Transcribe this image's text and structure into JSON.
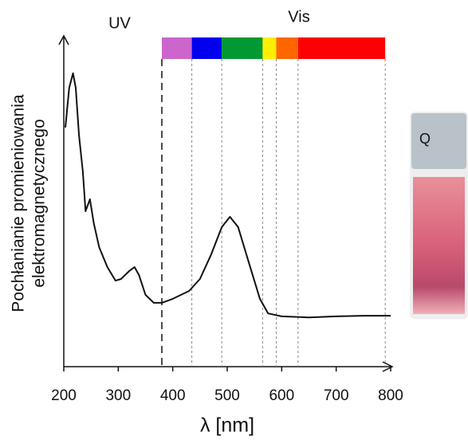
{
  "chart_data": {
    "type": "line",
    "annotations": [
      "UV",
      "Vis"
    ],
    "ylabel": [
      "Pochłanianie promieniowania",
      "elektromagnetycznego"
    ],
    "xlabel": "λ [nm]",
    "cuvette_label": "Q",
    "xlim": [
      200,
      800
    ],
    "xticks": [
      200,
      300,
      400,
      500,
      600,
      700,
      800
    ],
    "ylim": [
      0,
      1
    ],
    "bands": [
      {
        "from": 380,
        "to": 435,
        "color": "#cc66cc"
      },
      {
        "from": 435,
        "to": 490,
        "color": "#0000ee"
      },
      {
        "from": 490,
        "to": 565,
        "color": "#009933"
      },
      {
        "from": 565,
        "to": 590,
        "color": "#ffee00"
      },
      {
        "from": 590,
        "to": 630,
        "color": "#ff6600"
      },
      {
        "from": 630,
        "to": 790,
        "color": "#ff0000"
      }
    ],
    "series": [
      {
        "color": "#111111",
        "x": [
          203,
          210,
          217,
          222,
          228,
          235,
          240,
          248,
          255,
          265,
          280,
          295,
          305,
          320,
          330,
          338,
          350,
          365,
          380,
          400,
          430,
          450,
          470,
          490,
          505,
          520,
          540,
          560,
          575,
          600,
          650,
          700,
          750,
          800
        ],
        "values": [
          0.723,
          0.843,
          0.887,
          0.843,
          0.699,
          0.59,
          0.47,
          0.506,
          0.434,
          0.361,
          0.301,
          0.26,
          0.265,
          0.289,
          0.301,
          0.277,
          0.217,
          0.193,
          0.193,
          0.205,
          0.229,
          0.265,
          0.337,
          0.422,
          0.453,
          0.422,
          0.313,
          0.205,
          0.161,
          0.152,
          0.149,
          0.152,
          0.154,
          0.154
        ]
      }
    ]
  }
}
